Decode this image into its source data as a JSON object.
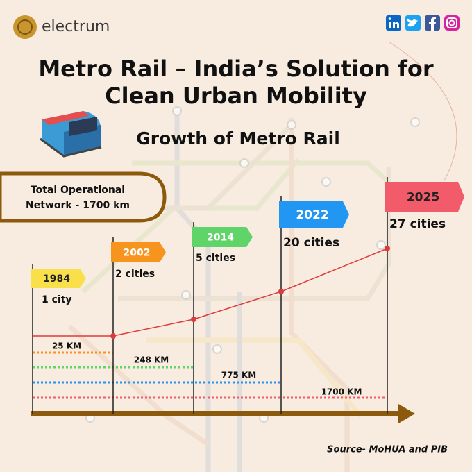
{
  "brand": "electrum",
  "title": [
    "Metro Rail – India’s Solution for",
    "Clean Urban Mobility"
  ],
  "subtitle": "Growth of Metro Rail",
  "network_box": [
    "Total Operational",
    "Network - 1700 km"
  ],
  "milestones": [
    {
      "year": "1984",
      "cities": "1 city",
      "color": "#f9e04b"
    },
    {
      "year": "2002",
      "cities": "2 cities",
      "color": "#f7941d"
    },
    {
      "year": "2014",
      "cities": "5 cities",
      "color": "#5fd468"
    },
    {
      "year": "2022",
      "cities": "20 cities",
      "color": "#2196f3"
    },
    {
      "year": "2025",
      "cities": "27 cities",
      "color": "#f25c6a"
    }
  ],
  "network_lengths": [
    {
      "label": "25 KM",
      "color": "#f7941d"
    },
    {
      "label": "248 KM",
      "color": "#5fd468"
    },
    {
      "label": "775 KM",
      "color": "#2196f3"
    },
    {
      "label": "1700 KM",
      "color": "#f25c6a"
    }
  ],
  "source": "Source- MoHUA and PIB"
}
